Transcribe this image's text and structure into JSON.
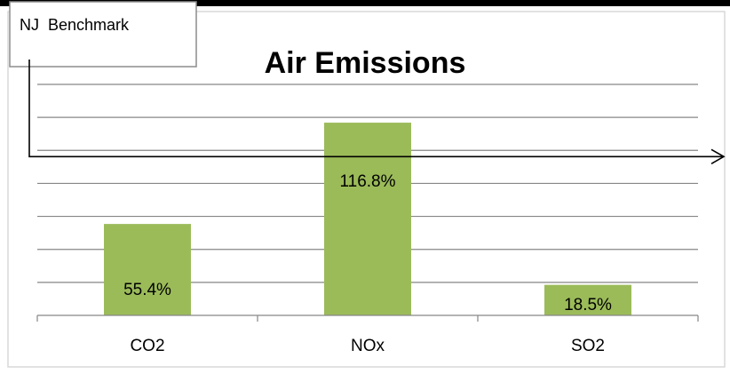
{
  "annotation": {
    "label": "NJ  Benchmark"
  },
  "chart_data": {
    "type": "bar",
    "title": "Air Emissions",
    "xlabel": "",
    "ylabel": "",
    "categories": [
      "CO2",
      "NOx",
      "SO2"
    ],
    "series": [
      {
        "values": [
          55.4,
          116.8,
          18.5
        ],
        "data_labels": [
          "55.4%",
          "116.8%",
          "18.5%"
        ],
        "color": "#9bbb59"
      }
    ],
    "ylim": [
      0,
      140
    ],
    "grid": true,
    "gridline_step": 20,
    "benchmark_value": 100,
    "legend": "none"
  },
  "colors": {
    "bar": "#9bbb59",
    "gridline": "#868686",
    "axis": "#868686",
    "frame": "#d9d9d9",
    "top_rule": "#000000"
  }
}
